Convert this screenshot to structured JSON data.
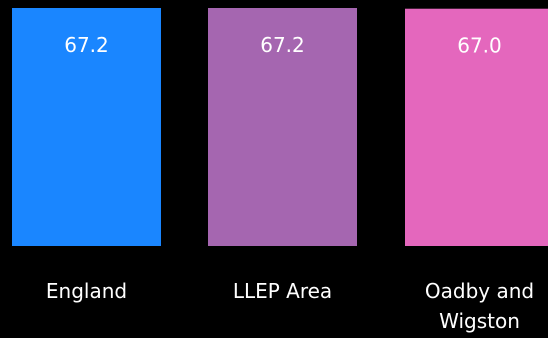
{
  "chart_data": {
    "type": "bar",
    "categories": [
      "England",
      "LLEP Area",
      "Oadby and Wigston"
    ],
    "category_lines": [
      [
        "England"
      ],
      [
        "LLEP Area"
      ],
      [
        "Oadby and",
        "Wigston"
      ]
    ],
    "values": [
      67.2,
      67.2,
      67.0
    ],
    "value_labels": [
      "67.2",
      "67.2",
      "67.0"
    ],
    "colors": [
      "#1a86ff",
      "#a566b0",
      "#e467bd"
    ],
    "title": "",
    "xlabel": "",
    "ylabel": "",
    "grid": false,
    "legend": "none"
  }
}
